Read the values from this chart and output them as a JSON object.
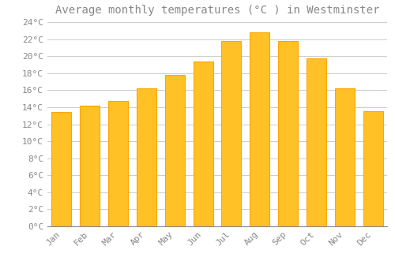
{
  "title": "Average monthly temperatures (°C ) in Westminster",
  "months": [
    "Jan",
    "Feb",
    "Mar",
    "Apr",
    "May",
    "Jun",
    "Jul",
    "Aug",
    "Sep",
    "Oct",
    "Nov",
    "Dec"
  ],
  "values": [
    13.4,
    14.2,
    14.7,
    16.2,
    17.8,
    19.4,
    21.8,
    22.8,
    21.8,
    19.7,
    16.2,
    13.5
  ],
  "bar_color_main": "#FFC125",
  "bar_color_edge": "#FFA500",
  "background_color": "#FFFFFF",
  "grid_color": "#CCCCCC",
  "text_color": "#888888",
  "ylim": [
    0,
    24
  ],
  "ytick_step": 2,
  "title_fontsize": 10,
  "tick_fontsize": 8,
  "font_family": "monospace",
  "bar_width": 0.7
}
